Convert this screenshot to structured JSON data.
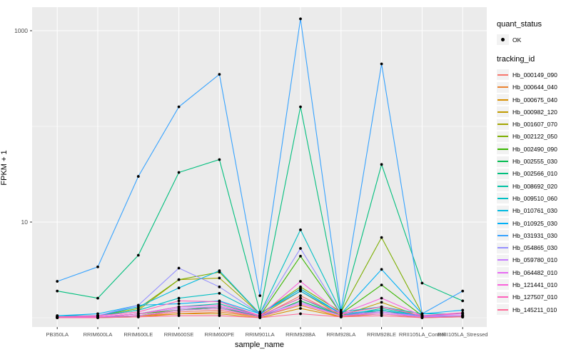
{
  "figure": {
    "panel_background": "#EBEBEB",
    "grid_color": "#FFFFFF",
    "tick_color": "#333333",
    "tick_label_color": "#4D4D4D",
    "marker_color": "#000000"
  },
  "legend": {
    "quant_status_title": "quant_status",
    "quant_status_items": [
      {
        "label": "OK",
        "marker": "point",
        "color": "#000000"
      }
    ],
    "tracking_id_title": "tracking_id"
  },
  "chart_data": {
    "type": "line",
    "title": "",
    "xlabel": "sample_name",
    "ylabel": "FPKM + 1",
    "x_categories": [
      "PB350LA",
      "RRIM600LA",
      "RRIM600LE",
      "RRIM600SE",
      "RRIM600PE",
      "RRIM901LA",
      "RRIM928BA",
      "RRIM928LA",
      "RRIM928LE",
      "RRII105LA_Control",
      "RRII105LA_Stressed"
    ],
    "y_scale": "log10",
    "y_ticks": [
      10,
      1000
    ],
    "y_minor_gridlines": [
      1,
      100
    ],
    "ylim": [
      0.75,
      1800
    ],
    "legend_position": "right",
    "grid": true,
    "series": [
      {
        "name": "Hb_000149_090",
        "color": "#F8766D",
        "values": [
          1.02,
          1.02,
          1.05,
          1.15,
          1.2,
          1.02,
          1.7,
          1.05,
          1.2,
          1.02,
          1.02
        ]
      },
      {
        "name": "Hb_000644_040",
        "color": "#EA8331",
        "values": [
          1.0,
          1.02,
          1.05,
          1.1,
          1.15,
          1.02,
          1.35,
          1.02,
          1.15,
          1.02,
          1.02
        ]
      },
      {
        "name": "Hb_000675_040",
        "color": "#D89000",
        "values": [
          1.0,
          1.0,
          1.02,
          1.1,
          1.1,
          1.0,
          1.25,
          1.02,
          1.1,
          1.0,
          1.02
        ]
      },
      {
        "name": "Hb_000982_120",
        "color": "#C09B00",
        "values": [
          1.02,
          1.02,
          1.1,
          1.2,
          1.3,
          1.05,
          1.9,
          1.05,
          1.45,
          1.02,
          1.05
        ]
      },
      {
        "name": "Hb_001607_070",
        "color": "#A3A500",
        "values": [
          1.02,
          1.05,
          1.2,
          2.5,
          2.6,
          1.1,
          2.0,
          1.1,
          1.3,
          1.05,
          1.05
        ]
      },
      {
        "name": "Hb_002122_050",
        "color": "#7CAE00",
        "values": [
          1.02,
          1.05,
          1.25,
          2.5,
          3.0,
          1.1,
          2.1,
          1.15,
          6.9,
          1.1,
          1.1
        ]
      },
      {
        "name": "Hb_002490_090",
        "color": "#39B600",
        "values": [
          1.0,
          1.02,
          1.1,
          1.2,
          1.25,
          1.05,
          4.4,
          1.1,
          2.2,
          1.05,
          1.05
        ]
      },
      {
        "name": "Hb_002555_030",
        "color": "#00BB4E",
        "values": [
          1.0,
          1.0,
          1.05,
          1.2,
          1.3,
          1.02,
          1.5,
          1.05,
          1.2,
          1.02,
          1.02
        ]
      },
      {
        "name": "Hb_002566_010",
        "color": "#00BF7D",
        "values": [
          1.9,
          1.6,
          4.5,
          33,
          45,
          1.15,
          160,
          1.13,
          40,
          2.3,
          1.5
        ]
      },
      {
        "name": "Hb_008692_020",
        "color": "#00C1A3",
        "values": [
          1.02,
          1.02,
          1.1,
          1.3,
          1.4,
          1.05,
          1.6,
          1.05,
          1.25,
          1.05,
          1.05
        ]
      },
      {
        "name": "Hb_009510_060",
        "color": "#00BFC4",
        "values": [
          1.05,
          1.05,
          1.2,
          1.6,
          1.8,
          1.1,
          8.3,
          1.15,
          1.3,
          1.1,
          1.1
        ]
      },
      {
        "name": "Hb_010761_030",
        "color": "#00BAE0",
        "values": [
          1.02,
          1.05,
          1.3,
          2.05,
          3.1,
          1.1,
          2.0,
          1.1,
          1.2,
          1.05,
          1.05
        ]
      },
      {
        "name": "Hb_010925_030",
        "color": "#00B0F6",
        "values": [
          1.05,
          1.1,
          1.35,
          1.4,
          1.5,
          1.1,
          1.9,
          1.1,
          3.2,
          1.1,
          1.2
        ]
      },
      {
        "name": "Hb_031931_030",
        "color": "#35A2FF",
        "values": [
          2.4,
          3.4,
          30,
          160,
          350,
          1.7,
          1330,
          1.2,
          450,
          1.1,
          1.9
        ]
      },
      {
        "name": "Hb_054865_030",
        "color": "#9590FF",
        "values": [
          1.02,
          1.05,
          1.35,
          3.3,
          2.1,
          1.1,
          5.3,
          1.1,
          1.15,
          1.05,
          1.05
        ]
      },
      {
        "name": "Hb_059780_010",
        "color": "#C77CFF",
        "values": [
          1.0,
          1.02,
          1.1,
          1.25,
          1.3,
          1.05,
          1.45,
          1.05,
          1.15,
          1.02,
          1.05
        ]
      },
      {
        "name": "Hb_064482_010",
        "color": "#E76BF3",
        "values": [
          1.0,
          1.02,
          1.05,
          1.2,
          1.25,
          1.02,
          1.4,
          1.05,
          1.1,
          1.02,
          1.05
        ]
      },
      {
        "name": "Hb_121441_010",
        "color": "#FA62DB",
        "values": [
          1.02,
          1.02,
          1.1,
          1.3,
          1.35,
          1.05,
          2.4,
          1.1,
          1.6,
          1.05,
          1.1
        ]
      },
      {
        "name": "Hb_127507_010",
        "color": "#FF62BC",
        "values": [
          1.02,
          1.05,
          1.15,
          1.5,
          1.47,
          1.05,
          1.6,
          1.1,
          1.3,
          1.05,
          1.13
        ]
      },
      {
        "name": "Hb_145211_010",
        "color": "#FF6A98",
        "values": [
          1.0,
          1.0,
          1.02,
          1.05,
          1.05,
          1.0,
          1.1,
          1.02,
          1.05,
          1.0,
          1.02
        ]
      }
    ]
  }
}
